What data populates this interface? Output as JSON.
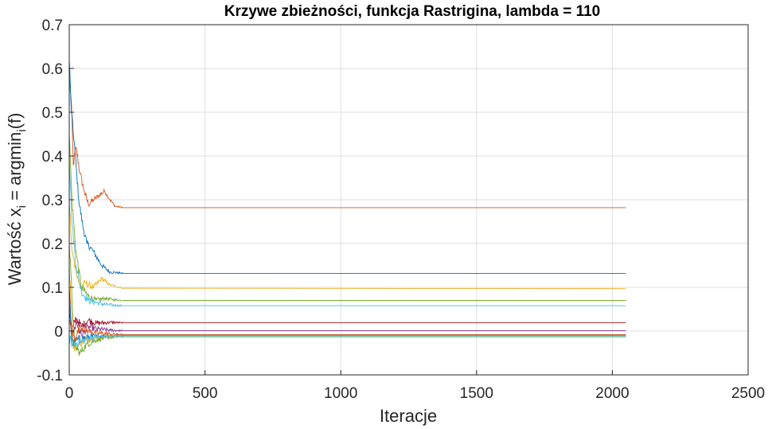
{
  "chart_data": {
    "type": "line",
    "title": "Krzywe zbieżności, funkcja Rastrigina, lambda = 110",
    "xlabel": "Iteracje",
    "ylabel": {
      "prefix": "Wartość x",
      "sub1": "i",
      "middle": " = argmin",
      "sub2": "i",
      "suffix": "(f)"
    },
    "xlim": [
      0,
      2500
    ],
    "ylim": [
      -0.1,
      0.7
    ],
    "xticks": [
      0,
      500,
      1000,
      1500,
      2000,
      2500
    ],
    "xtick_labels": [
      "0",
      "500",
      "1000",
      "1500",
      "2000",
      "2500"
    ],
    "yticks": [
      -0.1,
      0,
      0.1,
      0.2,
      0.3,
      0.4,
      0.5,
      0.6,
      0.7
    ],
    "ytick_labels": [
      "-0.1",
      "0",
      "0.1",
      "0.2",
      "0.3",
      "0.4",
      "0.5",
      "0.6",
      "0.7"
    ],
    "grid": true,
    "x_end": 2050,
    "series": [
      {
        "color": "#D95319",
        "points": [
          [
            0,
            0.58
          ],
          [
            8,
            0.52
          ],
          [
            15,
            0.38
          ],
          [
            25,
            0.42
          ],
          [
            40,
            0.36
          ],
          [
            55,
            0.32
          ],
          [
            70,
            0.29
          ],
          [
            90,
            0.3
          ],
          [
            110,
            0.31
          ],
          [
            130,
            0.32
          ],
          [
            150,
            0.3
          ],
          [
            170,
            0.285
          ],
          [
            200,
            0.282
          ],
          [
            2050,
            0.282
          ]
        ]
      },
      {
        "color": "#0072BD",
        "points": [
          [
            0,
            0.62
          ],
          [
            8,
            0.5
          ],
          [
            20,
            0.42
          ],
          [
            35,
            0.3
          ],
          [
            50,
            0.24
          ],
          [
            65,
            0.2
          ],
          [
            80,
            0.19
          ],
          [
            100,
            0.17
          ],
          [
            120,
            0.15
          ],
          [
            150,
            0.135
          ],
          [
            200,
            0.132
          ],
          [
            2050,
            0.132
          ]
        ]
      },
      {
        "color": "#EDB120",
        "points": [
          [
            0,
            0.3
          ],
          [
            10,
            0.18
          ],
          [
            25,
            0.14
          ],
          [
            40,
            0.1
          ],
          [
            60,
            0.11
          ],
          [
            90,
            0.1
          ],
          [
            120,
            0.12
          ],
          [
            150,
            0.105
          ],
          [
            200,
            0.098
          ],
          [
            2050,
            0.097
          ]
        ]
      },
      {
        "color": "#77AC30",
        "points": [
          [
            0,
            0.45
          ],
          [
            10,
            0.3
          ],
          [
            25,
            0.18
          ],
          [
            45,
            0.1
          ],
          [
            70,
            0.08
          ],
          [
            100,
            0.07
          ],
          [
            130,
            0.075
          ],
          [
            160,
            0.072
          ],
          [
            200,
            0.07
          ],
          [
            2050,
            0.07
          ]
        ]
      },
      {
        "color": "#4DBEEE",
        "points": [
          [
            0,
            0.4
          ],
          [
            10,
            0.25
          ],
          [
            25,
            0.15
          ],
          [
            45,
            0.09
          ],
          [
            70,
            0.07
          ],
          [
            100,
            0.065
          ],
          [
            140,
            0.06
          ],
          [
            200,
            0.058
          ],
          [
            2050,
            0.058
          ]
        ]
      },
      {
        "color": "#A2142F",
        "points": [
          [
            0,
            0.05
          ],
          [
            10,
            0.0
          ],
          [
            25,
            0.03
          ],
          [
            45,
            0.01
          ],
          [
            70,
            0.025
          ],
          [
            100,
            0.018
          ],
          [
            150,
            0.02
          ],
          [
            200,
            0.019
          ],
          [
            2050,
            0.019
          ]
        ]
      },
      {
        "color": "#7E2F8E",
        "points": [
          [
            0,
            0.1
          ],
          [
            10,
            -0.02
          ],
          [
            25,
            0.02
          ],
          [
            45,
            -0.01
          ],
          [
            70,
            0.01
          ],
          [
            100,
            0.005
          ],
          [
            150,
            0.002
          ],
          [
            200,
            0.001
          ],
          [
            2050,
            0.001
          ]
        ]
      },
      {
        "color": "#0072BD",
        "points": [
          [
            0,
            0.08
          ],
          [
            10,
            -0.03
          ],
          [
            30,
            -0.02
          ],
          [
            60,
            -0.015
          ],
          [
            100,
            -0.012
          ],
          [
            150,
            -0.01
          ],
          [
            200,
            -0.009
          ],
          [
            2050,
            -0.009
          ]
        ]
      },
      {
        "color": "#EDB120",
        "points": [
          [
            0,
            0.15
          ],
          [
            15,
            -0.04
          ],
          [
            35,
            -0.03
          ],
          [
            60,
            -0.02
          ],
          [
            100,
            -0.015
          ],
          [
            150,
            -0.012
          ],
          [
            200,
            -0.011
          ],
          [
            2050,
            -0.011
          ]
        ]
      },
      {
        "color": "#77AC30",
        "points": [
          [
            0,
            0.2
          ],
          [
            20,
            -0.035
          ],
          [
            40,
            -0.05
          ],
          [
            65,
            -0.03
          ],
          [
            100,
            -0.02
          ],
          [
            150,
            -0.014
          ],
          [
            200,
            -0.013
          ],
          [
            2050,
            -0.013
          ]
        ]
      },
      {
        "color": "#4DBEEE",
        "points": [
          [
            0,
            -0.02
          ],
          [
            15,
            -0.03
          ],
          [
            40,
            -0.025
          ],
          [
            80,
            -0.015
          ],
          [
            130,
            -0.012
          ],
          [
            200,
            -0.011
          ],
          [
            2050,
            -0.011
          ]
        ]
      },
      {
        "color": "#D95319",
        "points": [
          [
            0,
            0.02
          ],
          [
            20,
            -0.02
          ],
          [
            40,
            0.01
          ],
          [
            70,
            0.0
          ],
          [
            110,
            -0.005
          ],
          [
            160,
            -0.007
          ],
          [
            200,
            -0.008
          ],
          [
            2050,
            -0.008
          ]
        ]
      }
    ]
  }
}
